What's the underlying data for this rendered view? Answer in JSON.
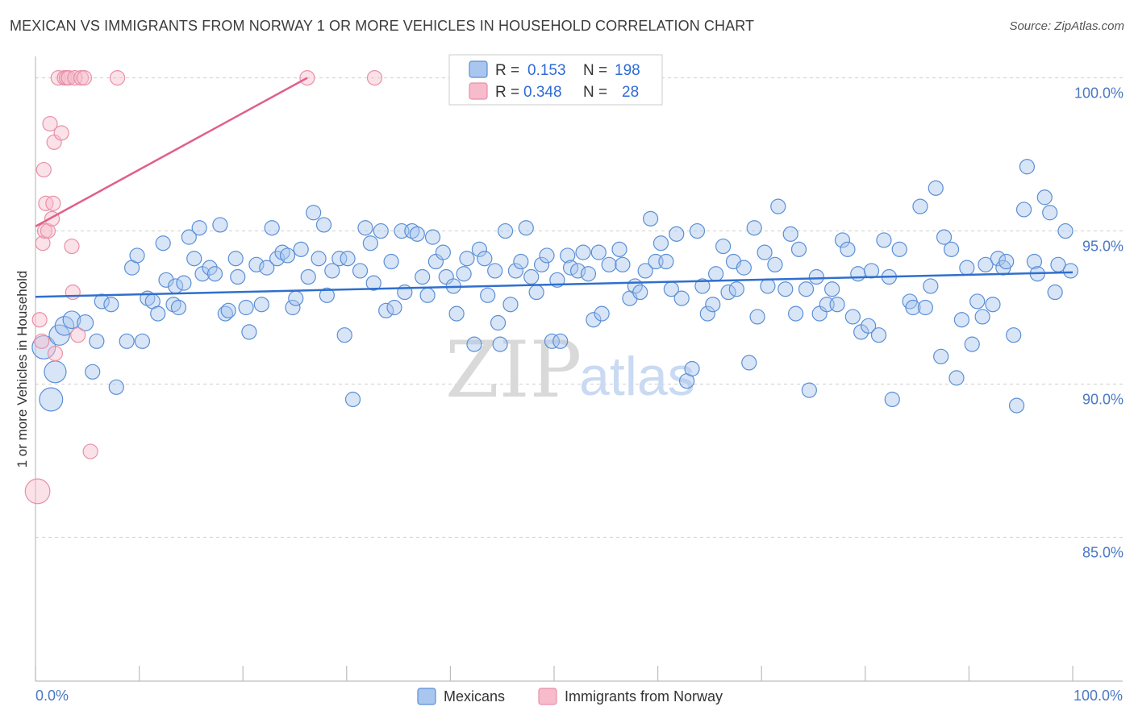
{
  "title": "MEXICAN VS IMMIGRANTS FROM NORWAY 1 OR MORE VEHICLES IN HOUSEHOLD CORRELATION CHART",
  "source": "Source: ZipAtlas.com",
  "watermark": {
    "zip": "ZIP",
    "atlas": "atlas"
  },
  "colors": {
    "blue_fill": "#a8c6ee",
    "blue_stroke": "#5b8fd6",
    "blue_line": "#2f6fce",
    "pink_fill": "#f6bccb",
    "pink_stroke": "#e890a8",
    "pink_line": "#e0608a",
    "grid": "#cfcfcf",
    "axis_text": "#4a78c4"
  },
  "stats": [
    {
      "r_label": "R =",
      "r_value": "0.153",
      "n_label": "N =",
      "n_value": "198"
    },
    {
      "r_label": "R =",
      "r_value": "0.348",
      "n_label": "N =",
      "n_value": "28"
    }
  ],
  "chart_data": {
    "type": "scatter",
    "title": "MEXICAN VS IMMIGRANTS FROM NORWAY 1 OR MORE VEHICLES IN HOUSEHOLD CORRELATION CHART",
    "xlabel": "",
    "ylabel": "1 or more Vehicles in Household",
    "xlim": [
      0,
      100
    ],
    "ylim": [
      80.3,
      100.7
    ],
    "x_tick_labels": [
      {
        "value": 0,
        "label": "0.0%"
      },
      {
        "value": 100,
        "label": "100.0%"
      }
    ],
    "y_ticks": [
      {
        "value": 85,
        "label": "85.0%"
      },
      {
        "value": 90,
        "label": "90.0%"
      },
      {
        "value": 95,
        "label": "95.0%"
      },
      {
        "value": 100,
        "label": "100.0%"
      }
    ],
    "legend_position": "bottom-center",
    "series": [
      {
        "name": "Mexicans",
        "color": "blue",
        "r": 0.153,
        "n": 198,
        "trend": {
          "x": [
            0,
            100
          ],
          "y": [
            92.85,
            93.65
          ]
        },
        "points": [
          [
            0.8,
            91.2,
            1.6
          ],
          [
            1.5,
            89.5,
            1.6
          ],
          [
            1.9,
            90.4,
            1.5
          ],
          [
            2.3,
            91.6,
            1.4
          ],
          [
            2.8,
            91.9,
            1.3
          ],
          [
            3.5,
            92.1,
            1.2
          ],
          [
            4.8,
            92.0,
            1.1
          ],
          [
            5.5,
            90.4,
            1.0
          ],
          [
            5.9,
            91.4,
            1.0
          ],
          [
            6.4,
            92.7,
            1.0
          ],
          [
            7.3,
            92.6,
            1.0
          ],
          [
            7.8,
            89.9,
            1.0
          ],
          [
            8.8,
            91.4,
            1.0
          ],
          [
            9.3,
            93.8,
            1.0
          ],
          [
            9.8,
            94.2,
            1.0
          ],
          [
            10.3,
            91.4,
            1.0
          ],
          [
            10.8,
            92.8,
            1.0
          ],
          [
            11.3,
            92.7,
            1.0
          ],
          [
            11.8,
            92.3,
            1.0
          ],
          [
            12.3,
            94.6,
            1.0
          ],
          [
            12.6,
            93.4,
            1.0
          ],
          [
            13.3,
            92.6,
            1.0
          ],
          [
            13.8,
            92.5,
            1.0
          ],
          [
            13.5,
            93.2,
            1.0
          ],
          [
            14.3,
            93.3,
            1.0
          ],
          [
            14.8,
            94.8,
            1.0
          ],
          [
            15.3,
            94.1,
            1.0
          ],
          [
            15.8,
            95.1,
            1.0
          ],
          [
            16.1,
            93.6,
            1.0
          ],
          [
            16.8,
            93.8,
            1.0
          ],
          [
            17.3,
            93.6,
            1.0
          ],
          [
            17.8,
            95.2,
            1.0
          ],
          [
            18.3,
            92.3,
            1.0
          ],
          [
            18.6,
            92.4,
            1.0
          ],
          [
            19.3,
            94.1,
            1.0
          ],
          [
            19.5,
            93.5,
            1.0
          ],
          [
            20.3,
            92.5,
            1.0
          ],
          [
            20.6,
            91.7,
            1.0
          ],
          [
            21.3,
            93.9,
            1.0
          ],
          [
            21.8,
            92.6,
            1.0
          ],
          [
            22.3,
            93.8,
            1.0
          ],
          [
            22.8,
            95.1,
            1.0
          ],
          [
            23.3,
            94.1,
            1.0
          ],
          [
            23.8,
            94.3,
            1.0
          ],
          [
            24.3,
            94.2,
            1.0
          ],
          [
            24.8,
            92.5,
            1.0
          ],
          [
            25.1,
            92.8,
            1.0
          ],
          [
            25.6,
            94.4,
            1.0
          ],
          [
            26.3,
            93.5,
            1.0
          ],
          [
            26.8,
            95.6,
            1.0
          ],
          [
            27.3,
            94.1,
            1.0
          ],
          [
            27.8,
            95.2,
            1.0
          ],
          [
            28.1,
            92.9,
            1.0
          ],
          [
            28.6,
            93.7,
            1.0
          ],
          [
            29.3,
            94.1,
            1.0
          ],
          [
            29.8,
            91.6,
            1.0
          ],
          [
            30.1,
            94.1,
            1.0
          ],
          [
            30.6,
            89.5,
            1.0
          ],
          [
            31.3,
            93.7,
            1.0
          ],
          [
            31.8,
            95.1,
            1.0
          ],
          [
            32.3,
            94.6,
            1.0
          ],
          [
            32.6,
            93.3,
            1.0
          ],
          [
            33.3,
            95.0,
            1.0
          ],
          [
            33.8,
            92.4,
            1.0
          ],
          [
            34.3,
            94.0,
            1.0
          ],
          [
            34.6,
            92.5,
            1.0
          ],
          [
            35.3,
            95.0,
            1.0
          ],
          [
            35.6,
            93.0,
            1.0
          ],
          [
            36.3,
            95.0,
            1.0
          ],
          [
            36.8,
            94.9,
            1.0
          ],
          [
            37.3,
            93.5,
            1.0
          ],
          [
            37.8,
            92.9,
            1.0
          ],
          [
            38.3,
            94.8,
            1.0
          ],
          [
            38.6,
            94.0,
            1.0
          ],
          [
            39.3,
            94.3,
            1.0
          ],
          [
            39.6,
            93.5,
            1.0
          ],
          [
            40.3,
            93.2,
            1.0
          ],
          [
            40.6,
            92.3,
            1.0
          ],
          [
            41.3,
            93.6,
            1.0
          ],
          [
            41.6,
            94.1,
            1.0
          ],
          [
            42.3,
            91.3,
            1.0
          ],
          [
            42.8,
            94.4,
            1.0
          ],
          [
            43.3,
            94.1,
            1.0
          ],
          [
            43.6,
            92.9,
            1.0
          ],
          [
            44.3,
            93.7,
            1.0
          ],
          [
            44.6,
            92.0,
            1.0
          ],
          [
            44.8,
            91.3,
            1.0
          ],
          [
            45.3,
            95.0,
            1.0
          ],
          [
            45.8,
            92.6,
            1.0
          ],
          [
            46.3,
            93.7,
            1.0
          ],
          [
            46.8,
            94.0,
            1.0
          ],
          [
            47.3,
            95.1,
            1.0
          ],
          [
            47.8,
            93.5,
            1.0
          ],
          [
            48.3,
            93.0,
            1.0
          ],
          [
            48.8,
            93.9,
            1.0
          ],
          [
            49.3,
            94.2,
            1.0
          ],
          [
            49.8,
            91.4,
            1.0
          ],
          [
            50.3,
            93.4,
            1.0
          ],
          [
            50.6,
            91.4,
            1.0
          ],
          [
            51.3,
            94.2,
            1.0
          ],
          [
            51.6,
            93.8,
            1.0
          ],
          [
            52.3,
            93.7,
            1.0
          ],
          [
            52.8,
            94.3,
            1.0
          ],
          [
            53.3,
            93.6,
            1.0
          ],
          [
            53.8,
            92.1,
            1.0
          ],
          [
            54.3,
            94.3,
            1.0
          ],
          [
            54.6,
            92.3,
            1.0
          ],
          [
            55.3,
            93.9,
            1.0
          ],
          [
            56.3,
            94.4,
            1.0
          ],
          [
            56.6,
            93.9,
            1.0
          ],
          [
            57.3,
            92.8,
            1.0
          ],
          [
            57.8,
            93.2,
            1.0
          ],
          [
            58.3,
            93.0,
            1.0
          ],
          [
            58.8,
            93.7,
            1.0
          ],
          [
            59.3,
            95.4,
            1.0
          ],
          [
            59.8,
            94.0,
            1.0
          ],
          [
            60.3,
            94.6,
            1.0
          ],
          [
            60.8,
            94.0,
            1.0
          ],
          [
            61.3,
            93.1,
            1.0
          ],
          [
            61.8,
            94.9,
            1.0
          ],
          [
            62.3,
            92.8,
            1.0
          ],
          [
            62.8,
            90.1,
            1.0
          ],
          [
            63.3,
            90.5,
            1.0
          ],
          [
            63.8,
            95.0,
            1.0
          ],
          [
            64.3,
            93.2,
            1.0
          ],
          [
            64.8,
            92.3,
            1.0
          ],
          [
            65.3,
            92.6,
            1.0
          ],
          [
            65.6,
            93.6,
            1.0
          ],
          [
            66.3,
            94.5,
            1.0
          ],
          [
            66.8,
            93.0,
            1.0
          ],
          [
            67.3,
            94.0,
            1.0
          ],
          [
            67.6,
            93.1,
            1.0
          ],
          [
            68.3,
            93.8,
            1.0
          ],
          [
            68.8,
            90.7,
            1.0
          ],
          [
            69.3,
            95.1,
            1.0
          ],
          [
            69.6,
            92.2,
            1.0
          ],
          [
            70.3,
            94.3,
            1.0
          ],
          [
            70.6,
            93.2,
            1.0
          ],
          [
            71.3,
            93.9,
            1.0
          ],
          [
            71.6,
            95.8,
            1.0
          ],
          [
            72.3,
            93.1,
            1.0
          ],
          [
            72.8,
            94.9,
            1.0
          ],
          [
            73.3,
            92.3,
            1.0
          ],
          [
            73.6,
            94.4,
            1.0
          ],
          [
            74.3,
            93.1,
            1.0
          ],
          [
            74.6,
            89.8,
            1.0
          ],
          [
            75.3,
            93.5,
            1.0
          ],
          [
            75.6,
            92.3,
            1.0
          ],
          [
            76.3,
            92.6,
            1.0
          ],
          [
            76.8,
            93.1,
            1.0
          ],
          [
            77.3,
            92.6,
            1.0
          ],
          [
            77.8,
            94.7,
            1.0
          ],
          [
            78.3,
            94.4,
            1.0
          ],
          [
            78.8,
            92.2,
            1.0
          ],
          [
            79.3,
            93.6,
            1.0
          ],
          [
            79.6,
            91.7,
            1.0
          ],
          [
            80.3,
            91.9,
            1.0
          ],
          [
            80.6,
            93.7,
            1.0
          ],
          [
            81.3,
            91.6,
            1.0
          ],
          [
            81.8,
            94.7,
            1.0
          ],
          [
            82.3,
            93.5,
            1.0
          ],
          [
            82.6,
            89.5,
            1.0
          ],
          [
            83.3,
            94.4,
            1.0
          ],
          [
            84.3,
            92.7,
            1.0
          ],
          [
            84.6,
            92.5,
            1.0
          ],
          [
            85.3,
            95.8,
            1.0
          ],
          [
            85.8,
            92.5,
            1.0
          ],
          [
            86.3,
            93.2,
            1.0
          ],
          [
            86.8,
            96.4,
            1.0
          ],
          [
            87.3,
            90.9,
            1.0
          ],
          [
            87.6,
            94.8,
            1.0
          ],
          [
            88.3,
            94.4,
            1.0
          ],
          [
            88.8,
            90.2,
            1.0
          ],
          [
            89.3,
            92.1,
            1.0
          ],
          [
            89.8,
            93.8,
            1.0
          ],
          [
            90.3,
            91.3,
            1.0
          ],
          [
            90.8,
            92.7,
            1.0
          ],
          [
            91.3,
            92.2,
            1.0
          ],
          [
            91.6,
            93.9,
            1.0
          ],
          [
            92.3,
            92.6,
            1.0
          ],
          [
            92.8,
            94.1,
            1.0
          ],
          [
            93.3,
            93.8,
            1.0
          ],
          [
            93.6,
            94.0,
            1.0
          ],
          [
            94.3,
            91.6,
            1.0
          ],
          [
            94.6,
            89.3,
            1.0
          ],
          [
            95.3,
            95.7,
            1.0
          ],
          [
            95.6,
            97.1,
            1.0
          ],
          [
            96.3,
            94.0,
            1.0
          ],
          [
            96.6,
            93.6,
            1.0
          ],
          [
            97.3,
            96.1,
            1.0
          ],
          [
            97.8,
            95.6,
            1.0
          ],
          [
            98.3,
            93.0,
            1.0
          ],
          [
            98.6,
            93.9,
            1.0
          ],
          [
            99.3,
            95.0,
            1.0
          ],
          [
            99.8,
            93.7,
            1.0
          ]
        ]
      },
      {
        "name": "Immigrants from Norway",
        "color": "pink",
        "r": 0.348,
        "n": 28,
        "trend": {
          "x": [
            0,
            26.2
          ],
          "y": [
            95.15,
            100.0
          ]
        },
        "points": [
          [
            0.2,
            86.5,
            1.7
          ],
          [
            0.4,
            92.1,
            1.0
          ],
          [
            0.6,
            91.4,
            1.0
          ],
          [
            0.7,
            94.6,
            1.0
          ],
          [
            0.8,
            97.0,
            1.0
          ],
          [
            0.9,
            95.0,
            1.0
          ],
          [
            1.0,
            95.9,
            1.0
          ],
          [
            1.2,
            95.0,
            1.0
          ],
          [
            1.4,
            98.5,
            1.0
          ],
          [
            1.6,
            95.4,
            1.0
          ],
          [
            1.7,
            95.9,
            1.0
          ],
          [
            1.8,
            97.9,
            1.0
          ],
          [
            1.9,
            91.0,
            1.0
          ],
          [
            2.2,
            100.0,
            1.0
          ],
          [
            2.5,
            98.2,
            1.0
          ],
          [
            2.8,
            100.0,
            1.0
          ],
          [
            3.0,
            100.0,
            1.0
          ],
          [
            3.2,
            100.0,
            1.0
          ],
          [
            3.5,
            94.5,
            1.0
          ],
          [
            3.6,
            93.0,
            1.0
          ],
          [
            3.8,
            100.0,
            1.0
          ],
          [
            4.1,
            91.6,
            1.0
          ],
          [
            4.4,
            100.0,
            1.0
          ],
          [
            4.7,
            100.0,
            1.0
          ],
          [
            5.3,
            87.8,
            1.0
          ],
          [
            7.9,
            100.0,
            1.0
          ],
          [
            26.2,
            100.0,
            1.0
          ],
          [
            32.7,
            100.0,
            1.0
          ]
        ]
      }
    ]
  },
  "legend": [
    {
      "label": "Mexicans"
    },
    {
      "label": "Immigrants from Norway"
    }
  ]
}
